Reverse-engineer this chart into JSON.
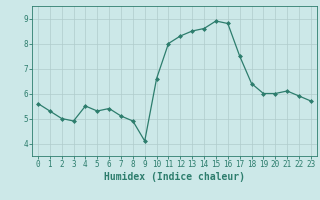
{
  "x": [
    0,
    1,
    2,
    3,
    4,
    5,
    6,
    7,
    8,
    9,
    10,
    11,
    12,
    13,
    14,
    15,
    16,
    17,
    18,
    19,
    20,
    21,
    22,
    23
  ],
  "y": [
    5.6,
    5.3,
    5.0,
    4.9,
    5.5,
    5.3,
    5.4,
    5.1,
    4.9,
    4.1,
    6.6,
    8.0,
    8.3,
    8.5,
    8.6,
    8.9,
    8.8,
    7.5,
    6.4,
    6.0,
    6.0,
    6.1,
    5.9,
    5.7
  ],
  "title": "",
  "xlabel": "Humidex (Indice chaleur)",
  "ylabel": "",
  "xlim": [
    -0.5,
    23.5
  ],
  "ylim": [
    3.5,
    9.5
  ],
  "yticks": [
    4,
    5,
    6,
    7,
    8,
    9
  ],
  "xticks": [
    0,
    1,
    2,
    3,
    4,
    5,
    6,
    7,
    8,
    9,
    10,
    11,
    12,
    13,
    14,
    15,
    16,
    17,
    18,
    19,
    20,
    21,
    22,
    23
  ],
  "line_color": "#2d7d6d",
  "marker": "D",
  "marker_size": 2.0,
  "bg_color": "#cce8e8",
  "grid_color": "#b0cccc",
  "axes_color": "#2d7d6d",
  "tick_label_fontsize": 5.5,
  "xlabel_fontsize": 7.0
}
